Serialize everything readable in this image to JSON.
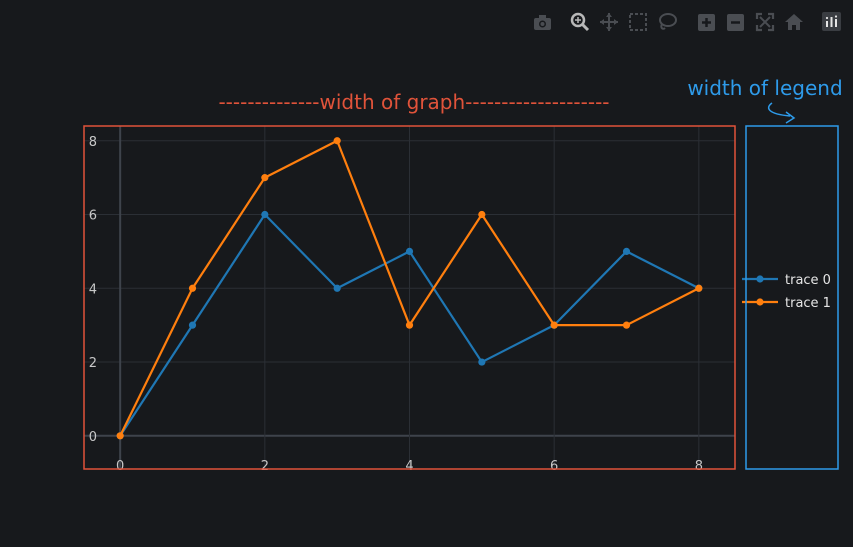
{
  "modebar": {
    "buttons": [
      {
        "icon": "camera-icon",
        "label": "Download plot as a png"
      },
      {
        "icon": "zoom-icon",
        "label": "Zoom"
      },
      {
        "icon": "pan-icon",
        "label": "Pan"
      },
      {
        "icon": "box-select-icon",
        "label": "Box Select"
      },
      {
        "icon": "lasso-select-icon",
        "label": "Lasso Select"
      },
      {
        "icon": "zoom-in-icon",
        "label": "Zoom in"
      },
      {
        "icon": "zoom-out-icon",
        "label": "Zoom out"
      },
      {
        "icon": "autoscale-icon",
        "label": "Autoscale"
      },
      {
        "icon": "home-icon",
        "label": "Reset axes"
      },
      {
        "icon": "plotly-logo-icon",
        "label": "Produced with Plotly"
      }
    ]
  },
  "annotations": {
    "graph_width_label": "--------------width of graph--------------------",
    "legend_width_label": "width of legend",
    "graph_box_color": "#e0533a",
    "legend_box_color": "#2e9bea"
  },
  "chart_data": {
    "type": "line",
    "title": "",
    "xlabel": "",
    "ylabel": "",
    "x": [
      0,
      1,
      2,
      3,
      4,
      5,
      6,
      7,
      8
    ],
    "xlim": [
      -0.5,
      8.5
    ],
    "ylim": [
      -0.9,
      8.4
    ],
    "x_ticks": [
      0,
      2,
      4,
      6,
      8
    ],
    "y_ticks": [
      0,
      2,
      4,
      6,
      8
    ],
    "grid": true,
    "legend_position": "right",
    "series": [
      {
        "name": "trace 0",
        "color": "#1f77b4",
        "values": [
          0,
          3,
          6,
          4,
          5,
          2,
          3,
          5,
          4
        ]
      },
      {
        "name": "trace 1",
        "color": "#ff7f0e",
        "values": [
          0,
          4,
          7,
          8,
          3,
          6,
          3,
          3,
          4
        ]
      }
    ]
  }
}
